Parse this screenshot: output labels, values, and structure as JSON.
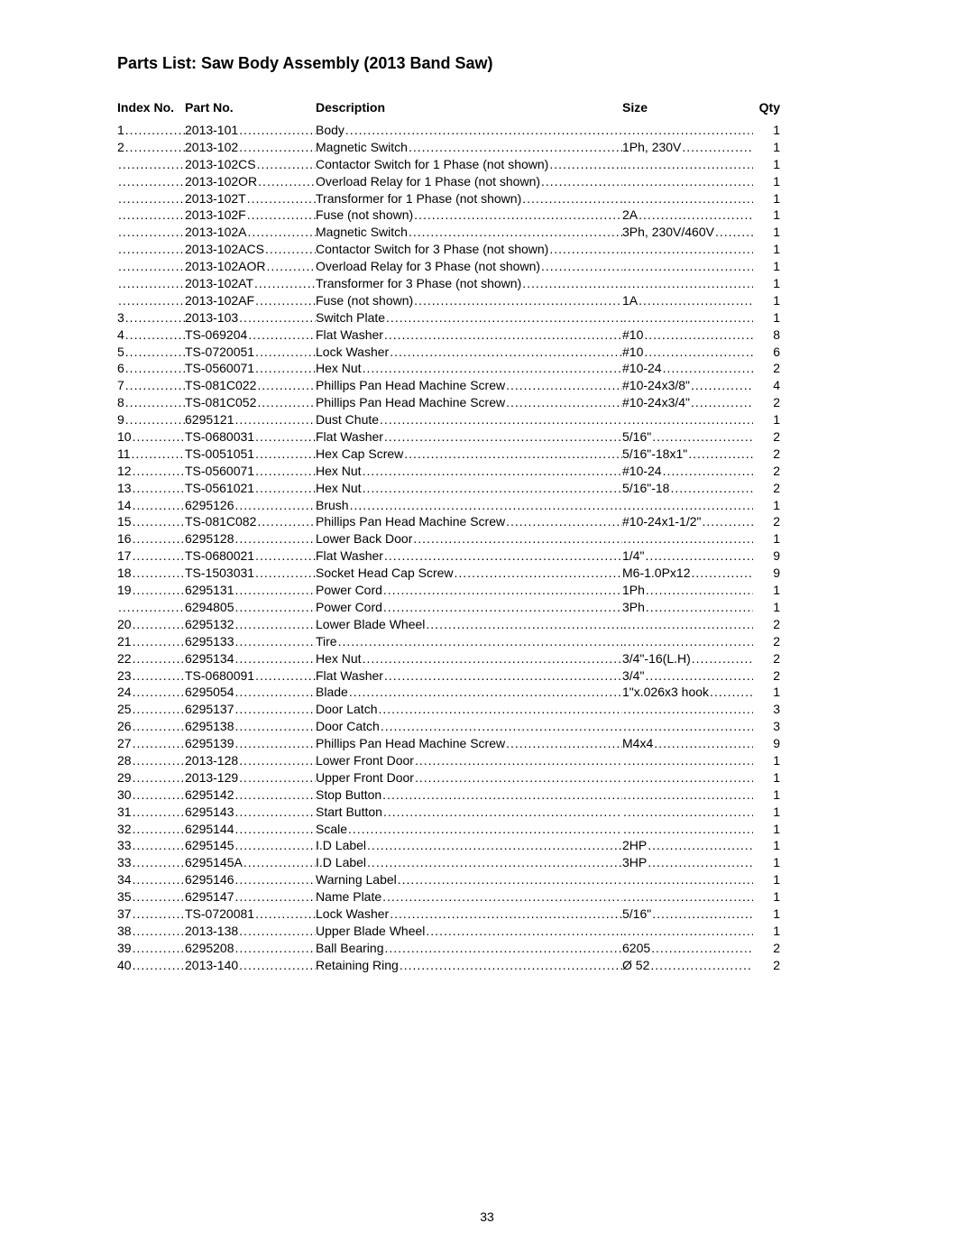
{
  "title": "Parts List: Saw Body Assembly (2013 Band Saw)",
  "page_number": "33",
  "headers": {
    "index": "Index No.",
    "partno": "Part No.",
    "description": "Description",
    "size": "Size",
    "qty": "Qty"
  },
  "rows": [
    {
      "index": "1",
      "partno": "2013-101",
      "description": "Body",
      "size": "",
      "qty": "1"
    },
    {
      "index": "2",
      "partno": "2013-102",
      "description": "Magnetic Switch",
      "size": "1Ph, 230V",
      "qty": "1"
    },
    {
      "index": "",
      "partno": "2013-102CS",
      "description": "Contactor Switch for 1 Phase (not shown)",
      "size": "",
      "qty": "1"
    },
    {
      "index": "",
      "partno": "2013-102OR",
      "description": "Overload Relay for 1 Phase (not shown)",
      "size": "",
      "qty": "1"
    },
    {
      "index": "",
      "partno": "2013-102T",
      "description": "Transformer for 1 Phase (not shown)",
      "size": "",
      "qty": "1"
    },
    {
      "index": "",
      "partno": "2013-102F",
      "description": "Fuse (not shown)",
      "size": "2A",
      "qty": "1"
    },
    {
      "index": "",
      "partno": "2013-102A",
      "description": "Magnetic Switch",
      "size": "3Ph, 230V/460V",
      "qty": "1"
    },
    {
      "index": "",
      "partno": "2013-102ACS",
      "description": "Contactor Switch for 3 Phase (not shown)",
      "size": "",
      "qty": "1"
    },
    {
      "index": "",
      "partno": "2013-102AOR",
      "description": "Overload Relay for 3 Phase (not shown)",
      "size": "",
      "qty": "1"
    },
    {
      "index": "",
      "partno": "2013-102AT",
      "description": "Transformer for 3 Phase (not shown)",
      "size": "",
      "qty": "1"
    },
    {
      "index": "",
      "partno": "2013-102AF",
      "description": "Fuse (not shown)",
      "size": "1A",
      "qty": "1"
    },
    {
      "index": "3",
      "partno": "2013-103",
      "description": "Switch Plate",
      "size": "",
      "qty": "1"
    },
    {
      "index": "4",
      "partno": "TS-069204",
      "description": "Flat Washer",
      "size": "#10",
      "qty": "8"
    },
    {
      "index": "5",
      "partno": "TS-0720051",
      "description": "Lock Washer",
      "size": "#10",
      "qty": "6"
    },
    {
      "index": "6",
      "partno": "TS-0560071",
      "description": "Hex Nut",
      "size": "#10-24",
      "qty": "2"
    },
    {
      "index": "7",
      "partno": "TS-081C022",
      "description": "Phillips Pan Head Machine Screw",
      "size": "#10-24x3/8\"",
      "qty": "4"
    },
    {
      "index": "8",
      "partno": "TS-081C052",
      "description": "Phillips Pan Head Machine Screw",
      "size": "#10-24x3/4\"",
      "qty": "2"
    },
    {
      "index": "9",
      "partno": "6295121",
      "description": "Dust Chute",
      "size": "",
      "qty": "1"
    },
    {
      "index": "10",
      "partno": "TS-0680031",
      "description": "Flat Washer",
      "size": "5/16\"",
      "qty": "2"
    },
    {
      "index": "11",
      "partno": "TS-0051051",
      "description": "Hex Cap Screw",
      "size": "5/16\"-18x1\"",
      "qty": "2"
    },
    {
      "index": "12",
      "partno": "TS-0560071",
      "description": "Hex Nut",
      "size": "#10-24",
      "qty": "2"
    },
    {
      "index": "13",
      "partno": "TS-0561021",
      "description": "Hex Nut",
      "size": "5/16\"-18",
      "qty": "2"
    },
    {
      "index": "14",
      "partno": "6295126",
      "description": "Brush",
      "size": "",
      "qty": "1"
    },
    {
      "index": "15",
      "partno": "TS-081C082",
      "description": "Phillips Pan Head Machine Screw",
      "size": "#10-24x1-1/2\"",
      "qty": "2"
    },
    {
      "index": "16",
      "partno": "6295128",
      "description": "Lower Back Door",
      "size": "",
      "qty": "1"
    },
    {
      "index": "17",
      "partno": "TS-0680021",
      "description": "Flat Washer",
      "size": "1/4\"",
      "qty": "9"
    },
    {
      "index": "18",
      "partno": "TS-1503031",
      "description": "Socket Head Cap Screw",
      "size": "M6-1.0Px12",
      "qty": "9"
    },
    {
      "index": "19",
      "partno": "6295131",
      "description": "Power Cord",
      "size": "1Ph",
      "qty": "1"
    },
    {
      "index": "",
      "partno": "6294805",
      "description": "Power Cord",
      "size": "3Ph",
      "qty": "1"
    },
    {
      "index": "20",
      "partno": "6295132",
      "description": "Lower Blade Wheel",
      "size": "",
      "qty": "2"
    },
    {
      "index": "21",
      "partno": "6295133",
      "description": "Tire",
      "size": "",
      "qty": "2"
    },
    {
      "index": "22",
      "partno": "6295134",
      "description": "Hex Nut",
      "size": "3/4\"-16(L.H)",
      "qty": "2"
    },
    {
      "index": "23",
      "partno": "TS-0680091",
      "description": "Flat Washer",
      "size": "3/4\"",
      "qty": "2"
    },
    {
      "index": "24",
      "partno": "6295054",
      "description": "Blade",
      "size": "1\"x.026x3 hook",
      "qty": "1"
    },
    {
      "index": "25",
      "partno": "6295137",
      "description": "Door Latch",
      "size": "",
      "qty": "3"
    },
    {
      "index": "26",
      "partno": "6295138",
      "description": "Door Catch",
      "size": "",
      "qty": "3"
    },
    {
      "index": "27",
      "partno": "6295139",
      "description": "Phillips Pan Head Machine Screw",
      "size": "M4x4",
      "qty": "9"
    },
    {
      "index": "28",
      "partno": "2013-128",
      "description": "Lower Front Door",
      "size": "",
      "qty": "1"
    },
    {
      "index": "29",
      "partno": "2013-129",
      "description": "Upper Front Door",
      "size": "",
      "qty": "1"
    },
    {
      "index": "30",
      "partno": "6295142",
      "description": "Stop Button",
      "size": "",
      "qty": "1"
    },
    {
      "index": "31",
      "partno": "6295143",
      "description": "Start Button",
      "size": "",
      "qty": "1"
    },
    {
      "index": "32",
      "partno": "6295144",
      "description": "Scale",
      "size": "",
      "qty": "1"
    },
    {
      "index": "33",
      "partno": "6295145",
      "description": "I.D Label",
      "size": "2HP",
      "qty": "1"
    },
    {
      "index": "33",
      "partno": "6295145A",
      "description": "I.D Label",
      "size": "3HP",
      "qty": "1"
    },
    {
      "index": "34",
      "partno": "6295146",
      "description": "Warning Label",
      "size": "",
      "qty": "1"
    },
    {
      "index": "35",
      "partno": "6295147",
      "description": "Name Plate",
      "size": "",
      "qty": "1"
    },
    {
      "index": "37",
      "partno": "TS-0720081",
      "description": "Lock Washer",
      "size": "5/16\"",
      "qty": "1"
    },
    {
      "index": "38",
      "partno": "2013-138",
      "description": "Upper Blade Wheel",
      "size": "",
      "qty": "1"
    },
    {
      "index": "39",
      "partno": "6295208",
      "description": "Ball Bearing",
      "size": "6205",
      "qty": "2"
    },
    {
      "index": "40",
      "partno": "2013-140",
      "description": "Retaining Ring",
      "size": "Ø 52",
      "qty": "2"
    }
  ]
}
